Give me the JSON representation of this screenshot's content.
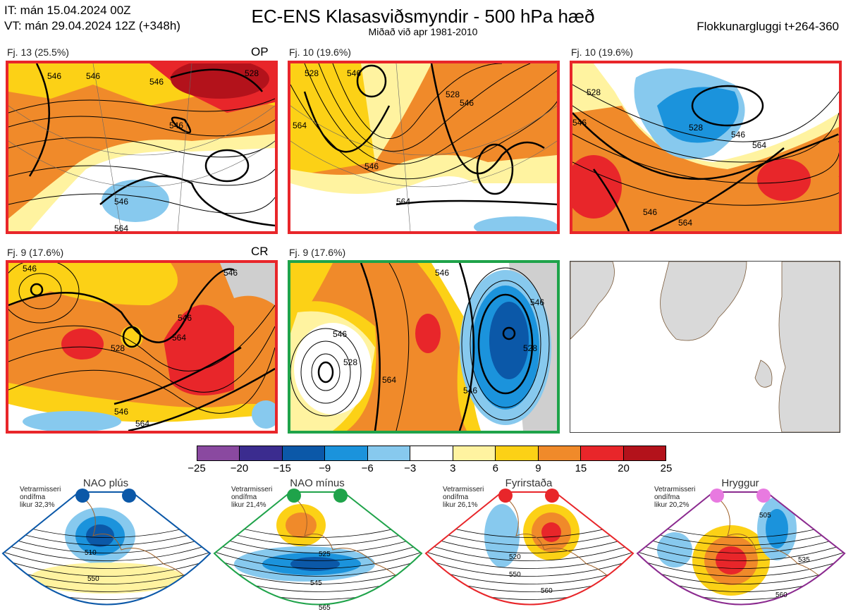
{
  "header": {
    "init_time": "IT: mán 15.04.2024 00Z",
    "valid_time": "VT: mán 29.04.2024 12Z  (+348h)",
    "title": "EC-ENS Klasasviðsmyndir - 500 hPa hæð",
    "subtitle": "Miðað við apr 1981-2010",
    "window": "Flokkunargluggi t+264-360"
  },
  "clusters": [
    {
      "label": "Fj. 13 (25.5%)",
      "tag": "OP",
      "border": "#e8262a",
      "contours": [
        "546",
        "546",
        "546",
        "546",
        "564",
        "528",
        "546"
      ]
    },
    {
      "label": "Fj. 10 (19.6%)",
      "tag": "",
      "border": "#e8262a",
      "contours": [
        "528",
        "546",
        "546",
        "564",
        "528",
        "564",
        "546"
      ]
    },
    {
      "label": "Fj. 10 (19.6%)",
      "tag": "",
      "border": "#e8262a",
      "contours": [
        "528",
        "546",
        "528",
        "564",
        "546",
        "546",
        "564"
      ]
    },
    {
      "label": "Fj. 9 (17.6%)",
      "tag": "CR",
      "border": "#e8262a",
      "contours": [
        "546",
        "546",
        "564",
        "528",
        "546",
        "546",
        "564"
      ]
    },
    {
      "label": "Fj. 9 (17.6%)",
      "tag": "",
      "border": "#1fa34a",
      "contours": [
        "546",
        "546",
        "564",
        "528",
        "546",
        "546",
        "528"
      ]
    }
  ],
  "colorbar": {
    "ticks": [
      "−25",
      "−20",
      "−15",
      "−9",
      "−6",
      "−3",
      "3",
      "6",
      "9",
      "15",
      "20",
      "25"
    ],
    "colors": [
      "#8a49a0",
      "#3b2c8f",
      "#0b58a8",
      "#1b93dc",
      "#87c9ee",
      "#ffffff",
      "#fff3a0",
      "#fcd116",
      "#f08a2a",
      "#e8262a",
      "#b3121b"
    ]
  },
  "regimes": [
    {
      "name": "NAO plús",
      "note": [
        "Vetrarmisseri",
        "ondífma",
        "likur 32,3%"
      ],
      "color": "#0b58a8",
      "labels": [
        "510",
        "550"
      ]
    },
    {
      "name": "NAO mínus",
      "note": [
        "Vetrarmisseri",
        "ondífma",
        "likur 21,4%"
      ],
      "color": "#1fa34a",
      "labels": [
        "525",
        "545",
        "565"
      ]
    },
    {
      "name": "Fyrirstaða",
      "note": [
        "Vetrarmisseri",
        "ondífma",
        "likur 26,1%"
      ],
      "color": "#e8262a",
      "labels": [
        "520",
        "550",
        "560"
      ]
    },
    {
      "name": "Hryggur",
      "note": [
        "Vetrarmisseri",
        "ondífma",
        "likur 20,2%"
      ],
      "color": "#8b2a8f",
      "labels": [
        "505",
        "535",
        "560"
      ]
    }
  ]
}
